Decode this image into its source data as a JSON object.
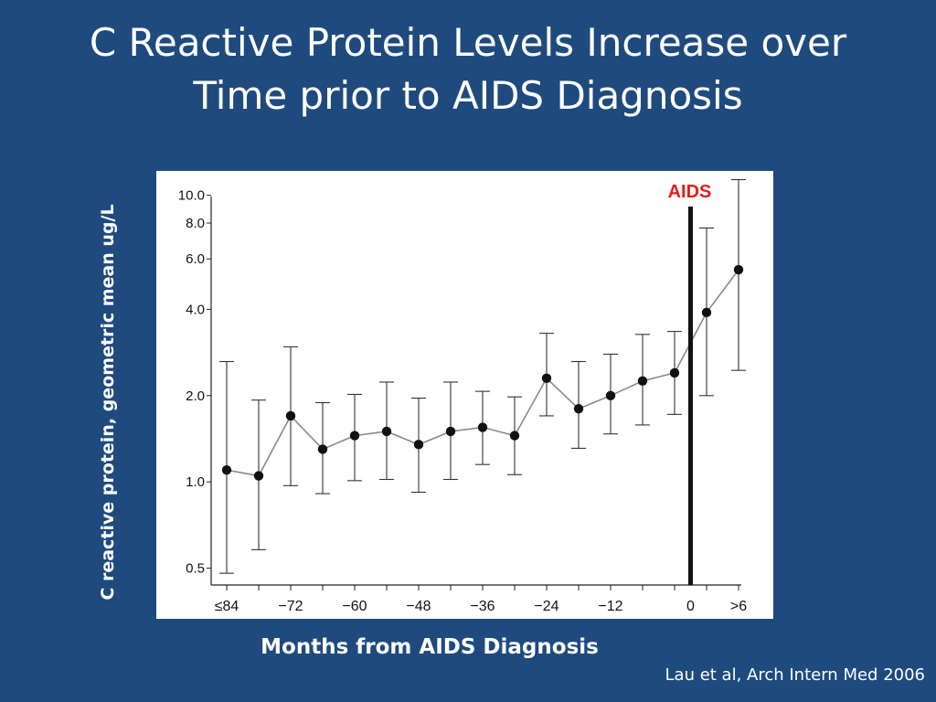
{
  "slide": {
    "title_lines": [
      "C Reactive Protein Levels Increase over",
      "Time prior to AIDS Diagnosis"
    ],
    "citation": "Lau et al, Arch Intern Med 2006"
  },
  "colors": {
    "background": "#1f4a7e",
    "panel": "#ffffff",
    "aids_label": "#e0201b",
    "line": "#888888",
    "marker": "#111111"
  },
  "chart_data": {
    "type": "line",
    "title": "",
    "xlabel": "Months from AIDS Diagnosis",
    "ylabel": "C reactive protein, geometric mean ug/L",
    "yscale": "log",
    "ylim": [
      0.44,
      10.5
    ],
    "yticks": [
      0.5,
      1.0,
      2.0,
      4.0,
      6.0,
      8.0,
      10.0
    ],
    "ytick_labels": [
      "0.5",
      "1.0",
      "2.0",
      "4.0",
      "6.0",
      "8.0",
      "10.0"
    ],
    "xticks": [
      "≤84",
      "−72",
      "−60",
      "−48",
      "−36",
      "−24",
      "−12",
      "0",
      ">6"
    ],
    "x": [
      "≤84",
      "−78",
      "−72",
      "−66",
      "−60",
      "−54",
      "−48",
      "−42",
      "−36",
      "−30",
      "−24",
      "−18",
      "−12",
      "−6",
      "−3",
      "3",
      "6"
    ],
    "series": [
      {
        "values": [
          1.1,
          1.05,
          1.7,
          1.3,
          1.45,
          1.5,
          1.35,
          1.5,
          1.55,
          1.45,
          2.3,
          1.8,
          2.0,
          2.25,
          2.4,
          3.9,
          5.5
        ],
        "lower": [
          0.48,
          0.58,
          0.97,
          0.91,
          1.01,
          1.02,
          0.92,
          1.02,
          1.15,
          1.06,
          1.7,
          1.31,
          1.47,
          1.58,
          1.72,
          2.0,
          2.45
        ],
        "upper": [
          2.63,
          1.93,
          2.96,
          1.89,
          2.02,
          2.23,
          1.96,
          2.23,
          2.07,
          1.98,
          3.3,
          2.63,
          2.79,
          3.27,
          3.35,
          7.69,
          12.0
        ]
      }
    ],
    "annotations": [
      {
        "text": "AIDS",
        "at_x": "0",
        "type": "vertical-line"
      }
    ],
    "grid": false,
    "legend": "none"
  }
}
